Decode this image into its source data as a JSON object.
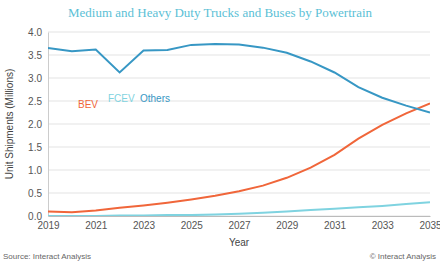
{
  "chart_data": {
    "type": "line",
    "title": "Medium and Heavy Duty Trucks and Buses by Powertrain",
    "x_label": "Year",
    "y_label": "Unit Shipments (Millions)",
    "source": "Source: Interact Analysis",
    "copyright": "© Interact Analysis",
    "x": [
      2019,
      2020,
      2021,
      2022,
      2023,
      2024,
      2025,
      2026,
      2027,
      2028,
      2029,
      2030,
      2031,
      2032,
      2033,
      2034,
      2035
    ],
    "series": [
      {
        "name": "BEV",
        "color": "#f0663a",
        "values": [
          0.1,
          0.08,
          0.12,
          0.18,
          0.23,
          0.29,
          0.36,
          0.44,
          0.54,
          0.66,
          0.83,
          1.05,
          1.33,
          1.68,
          1.98,
          2.23,
          2.45
        ]
      },
      {
        "name": "FCEV",
        "color": "#7fd3e0",
        "values": [
          0.0,
          0.0,
          0.0,
          0.01,
          0.01,
          0.02,
          0.02,
          0.03,
          0.05,
          0.07,
          0.1,
          0.13,
          0.16,
          0.19,
          0.22,
          0.26,
          0.3
        ]
      },
      {
        "name": "Others",
        "color": "#3797c4",
        "values": [
          3.65,
          3.58,
          3.62,
          3.12,
          3.6,
          3.61,
          3.72,
          3.74,
          3.73,
          3.66,
          3.55,
          3.36,
          3.12,
          2.8,
          2.57,
          2.4,
          2.25
        ]
      }
    ],
    "xlim": [
      2019,
      2035
    ],
    "xticks": [
      2019,
      2021,
      2023,
      2025,
      2027,
      2029,
      2031,
      2033,
      2035
    ],
    "ylim": [
      0,
      4
    ],
    "yticks": [
      {
        "value": 0,
        "label": "0.0"
      },
      {
        "value": 0.5,
        "label": "0.5"
      },
      {
        "value": 1,
        "label": "1.0"
      },
      {
        "value": 1.5,
        "label": "1.5"
      },
      {
        "value": 2,
        "label": "2.0"
      },
      {
        "value": 2.5,
        "label": "2.5"
      },
      {
        "value": 3,
        "label": "3.0"
      },
      {
        "value": 3.5,
        "label": "3.5"
      },
      {
        "value": 4,
        "label": "4.0"
      }
    ],
    "grid": true,
    "legend": "upper left"
  }
}
